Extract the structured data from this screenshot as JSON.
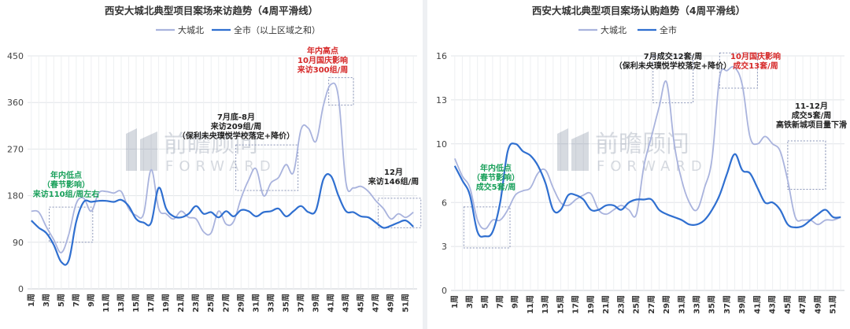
{
  "chart_data": [
    {
      "type": "line",
      "title": "西安大城北典型项目案场来访趋势（4周平滑线）",
      "xlabel": "",
      "ylabel": "",
      "ylim": [
        0,
        450
      ],
      "yticks": [
        0,
        90,
        180,
        270,
        360,
        450
      ],
      "grid": true,
      "legend_position": "top",
      "categories": [
        "1周",
        "2周",
        "3周",
        "4周",
        "5周",
        "6周",
        "7周",
        "8周",
        "9周",
        "10周",
        "11周",
        "12周",
        "13周",
        "14周",
        "15周",
        "16周",
        "17周",
        "18周",
        "19周",
        "20周",
        "21周",
        "22周",
        "23周",
        "24周",
        "25周",
        "26周",
        "27周",
        "28周",
        "29周",
        "30周",
        "31周",
        "32周",
        "33周",
        "34周",
        "35周",
        "36周",
        "37周",
        "38周",
        "39周",
        "40周",
        "41周",
        "42周",
        "43周",
        "44周",
        "45周",
        "46周",
        "47周",
        "48周",
        "49周",
        "50周",
        "51周",
        "52周"
      ],
      "tick_labels": [
        "1周",
        "3周",
        "5周",
        "7周",
        "9周",
        "11周",
        "13周",
        "15周",
        "17周",
        "19周",
        "21周",
        "23周",
        "25周",
        "27周",
        "29周",
        "31周",
        "33周",
        "35周",
        "37周",
        "39周",
        "41周",
        "43周",
        "45周",
        "47周",
        "49周",
        "51周"
      ],
      "series": [
        {
          "name": "大城北",
          "color": "#a9b3dd",
          "values": [
            150,
            148,
            120,
            95,
            70,
            105,
            165,
            175,
            150,
            185,
            188,
            185,
            188,
            155,
            142,
            145,
            230,
            155,
            145,
            135,
            150,
            138,
            135,
            110,
            108,
            150,
            125,
            130,
            175,
            210,
            232,
            180,
            205,
            215,
            240,
            225,
            308,
            310,
            285,
            355,
            395,
            370,
            205,
            195,
            198,
            188,
            170,
            155,
            135,
            145,
            138,
            148
          ]
        },
        {
          "name": "全市（以上区域之和）",
          "color": "#2f6fd0",
          "values": [
            132,
            118,
            108,
            85,
            52,
            55,
            130,
            168,
            168,
            170,
            170,
            168,
            172,
            160,
            135,
            128,
            128,
            195,
            155,
            140,
            138,
            145,
            160,
            145,
            148,
            138,
            150,
            140,
            152,
            150,
            140,
            148,
            150,
            155,
            140,
            150,
            160,
            148,
            152,
            212,
            218,
            180,
            150,
            148,
            140,
            138,
            128,
            118,
            122,
            128,
            132,
            120
          ]
        }
      ],
      "annotations": [
        {
          "lines": [
            "年内低点",
            "（春节影响）",
            "来访110组/周左右"
          ],
          "color": "#18a05a"
        },
        {
          "lines": [
            "7月底-8月",
            "来访209组/周",
            "（保利未央璞悦学校落定+降价）"
          ],
          "color": "#222222"
        },
        {
          "lines": [
            "年内高点",
            "10月国庆影响",
            "来访300组/周"
          ],
          "color": "#d62828"
        },
        {
          "lines": [
            "12月",
            "来访146组/周"
          ],
          "color": "#222222"
        }
      ]
    },
    {
      "type": "line",
      "title": "西安大城北典型项目案场认购趋势（4周平滑线）",
      "xlabel": "",
      "ylabel": "",
      "ylim": [
        0,
        16
      ],
      "yticks": [
        0,
        3,
        6,
        10,
        13,
        16
      ],
      "grid": true,
      "legend_position": "top",
      "categories": [
        "1周",
        "2周",
        "3周",
        "4周",
        "5周",
        "6周",
        "7周",
        "8周",
        "9周",
        "10周",
        "11周",
        "12周",
        "13周",
        "14周",
        "15周",
        "16周",
        "17周",
        "18周",
        "19周",
        "20周",
        "21周",
        "22周",
        "23周",
        "24周",
        "25周",
        "26周",
        "27周",
        "28周",
        "29周",
        "30周",
        "31周",
        "32周",
        "33周",
        "34周",
        "35周",
        "36周",
        "37周",
        "38周",
        "39周",
        "40周",
        "41周",
        "42周",
        "43周",
        "44周",
        "45周",
        "46周",
        "47周",
        "48周",
        "49周",
        "50周",
        "51周",
        "52周"
      ],
      "tick_labels": [
        "1周",
        "3周",
        "5周",
        "7周",
        "9周",
        "11周",
        "13周",
        "15周",
        "17周",
        "19周",
        "21周",
        "23周",
        "25周",
        "27周",
        "29周",
        "31周",
        "33周",
        "35周",
        "37周",
        "39周",
        "41周",
        "43周",
        "45周",
        "47周",
        "49周",
        "51周"
      ],
      "series": [
        {
          "name": "大城北",
          "color": "#a9b3dd",
          "values": [
            9.0,
            7.8,
            7.0,
            4.8,
            4.2,
            4.8,
            4.8,
            5.5,
            6.5,
            6.8,
            7.0,
            8.0,
            8.2,
            7.0,
            6.0,
            5.8,
            6.2,
            6.5,
            6.6,
            5.5,
            5.2,
            5.5,
            5.8,
            5.5,
            5.2,
            8.5,
            10.5,
            12.5,
            14.2,
            10.0,
            7.5,
            6.0,
            5.5,
            7.0,
            9.0,
            14.5,
            15.0,
            15.2,
            14.0,
            10.5,
            10.0,
            10.5,
            10.0,
            9.5,
            7.5,
            5.0,
            4.8,
            4.8,
            4.5,
            4.8,
            4.8,
            5.0
          ]
        },
        {
          "name": "全市",
          "color": "#2f6fd0",
          "values": [
            8.5,
            7.5,
            6.5,
            4.0,
            3.7,
            4.0,
            6.0,
            9.5,
            10.0,
            9.5,
            9.2,
            8.5,
            7.3,
            5.5,
            5.5,
            6.5,
            6.5,
            6.2,
            5.5,
            5.5,
            5.8,
            5.8,
            5.5,
            6.0,
            6.2,
            6.2,
            6.2,
            5.5,
            5.2,
            5.0,
            4.8,
            4.5,
            4.5,
            4.8,
            5.5,
            6.5,
            8.0,
            9.3,
            8.2,
            8.0,
            7.0,
            6.0,
            6.0,
            5.5,
            4.5,
            4.3,
            4.4,
            4.8,
            5.2,
            5.5,
            5.0,
            5.0
          ]
        }
      ],
      "annotations": [
        {
          "lines": [
            "年内低点",
            "（春节影响）",
            "成交5套/周"
          ],
          "color": "#18a05a"
        },
        {
          "lines": [
            "7月成交12套/周",
            "（保利未央璞悦学校落定+降价）"
          ],
          "color": "#222222"
        },
        {
          "lines": [
            "10月国庆影响",
            "成交13套/周"
          ],
          "color": "#d62828"
        },
        {
          "lines": [
            "11-12月",
            "成交5套/周",
            "高铁新城项目量下滑"
          ],
          "color": "#222222"
        }
      ]
    }
  ],
  "watermark": {
    "cn": "前瞻顾问",
    "en": "FORWARD"
  }
}
